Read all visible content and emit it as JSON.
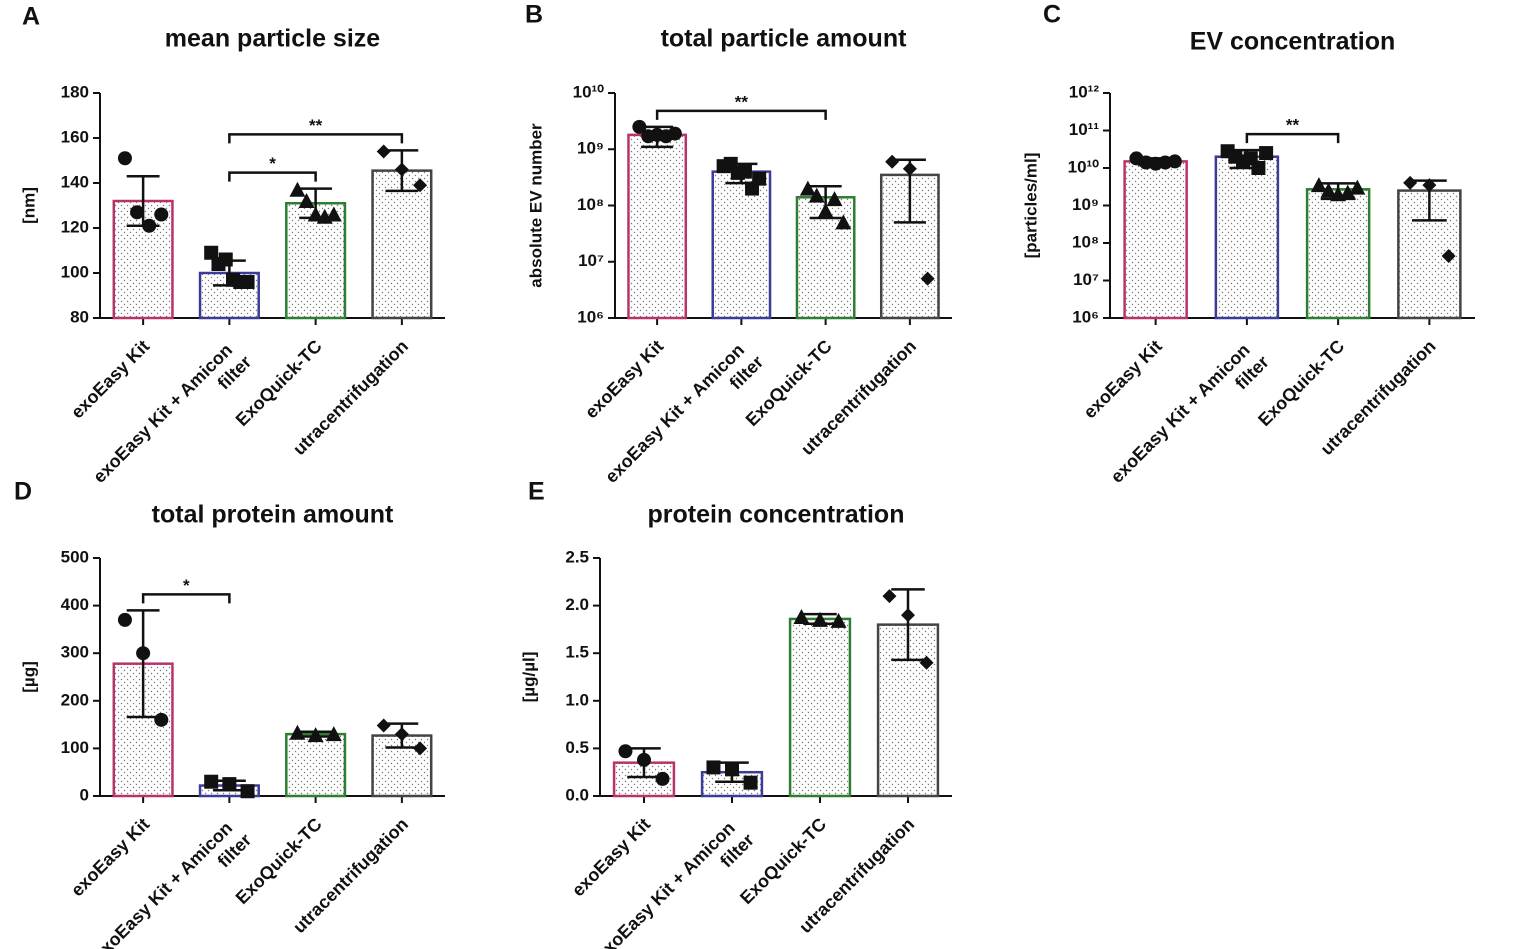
{
  "chart_data": [
    {
      "type": "bar",
      "panel": "A",
      "title": "mean particle size",
      "ylabel": "[nm]",
      "categories": [
        "exoEasy Kit",
        "exoEasy Kit + Amicon filter",
        "ExoQuick-TC",
        "utracentrifugation"
      ],
      "colors": [
        "#b8336a",
        "#3b3b98",
        "#2e7d32",
        "#444444"
      ],
      "markers": [
        "circle",
        "square",
        "triangle",
        "diamond"
      ],
      "values": [
        132,
        100,
        131,
        145.5
      ],
      "errors": [
        11,
        5.5,
        6.5,
        9
      ],
      "points": [
        [
          151,
          127,
          121,
          126
        ],
        [
          109,
          104,
          106,
          97,
          96,
          96
        ],
        [
          137,
          132,
          126,
          125,
          126
        ],
        [
          154,
          146,
          139
        ]
      ],
      "ylim": [
        80,
        180
      ],
      "yticks": [
        80,
        100,
        120,
        140,
        160,
        180
      ],
      "log": false,
      "significance": [
        {
          "between": [
            "exoEasy Kit + Amicon filter",
            "ExoQuick-TC"
          ],
          "label": "*"
        },
        {
          "between": [
            "exoEasy Kit + Amicon filter",
            "utracentrifugation"
          ],
          "label": "**"
        }
      ]
    },
    {
      "type": "bar",
      "panel": "B",
      "title": "total particle amount",
      "ylabel": "absolute EV number",
      "categories": [
        "exoEasy Kit",
        "exoEasy Kit + Amicon filter",
        "ExoQuick-TC",
        "utracentrifugation"
      ],
      "colors": [
        "#b8336a",
        "#3b3b98",
        "#2e7d32",
        "#444444"
      ],
      "markers": [
        "circle",
        "square",
        "triangle",
        "diamond"
      ],
      "values": [
        1800000000,
        400000000,
        140000000,
        350000000
      ],
      "errors": [
        700000000,
        150000000,
        80000000,
        300000000
      ],
      "points": [
        [
          2500000000,
          1700000000,
          1800000000,
          1700000000,
          1900000000
        ],
        [
          500000000,
          550000000,
          380000000,
          400000000,
          200000000,
          300000000
        ],
        [
          200000000,
          150000000,
          80000000,
          130000000,
          50000000
        ],
        [
          600000000,
          450000000,
          5000000
        ]
      ],
      "ylim": [
        1000000,
        10000000000
      ],
      "log": true,
      "yticks": [
        {
          "value": 1000000,
          "label": "10⁶"
        },
        {
          "value": 10000000,
          "label": "10⁷"
        },
        {
          "value": 100000000,
          "label": "10⁸"
        },
        {
          "value": 1000000000,
          "label": "10⁹"
        },
        {
          "value": 10000000000,
          "label": "10¹⁰"
        }
      ],
      "significance": [
        {
          "between": [
            "exoEasy Kit",
            "ExoQuick-TC"
          ],
          "label": "**"
        }
      ]
    },
    {
      "type": "bar",
      "panel": "C",
      "title": "EV concentration",
      "ylabel": "[particles/ml]",
      "categories": [
        "exoEasy Kit",
        "exoEasy Kit + Amicon filter",
        "ExoQuick-TC",
        "utracentrifugation"
      ],
      "colors": [
        "#b8336a",
        "#3b3b98",
        "#2e7d32",
        "#444444"
      ],
      "markers": [
        "circle",
        "square",
        "triangle",
        "diamond"
      ],
      "values": [
        15000000000,
        20000000000,
        2700000000,
        2500000000
      ],
      "errors": [
        3000000000,
        10000000000,
        1200000000,
        2100000000
      ],
      "points": [
        [
          18000000000,
          14000000000,
          13000000000,
          14000000000,
          15000000000
        ],
        [
          28000000000,
          20000000000,
          15000000000,
          18000000000,
          10000000000,
          25000000000
        ],
        [
          3500000000,
          2500000000,
          2000000000,
          2200000000,
          3000000000
        ],
        [
          4000000000,
          3500000000,
          45000000
        ]
      ],
      "ylim": [
        1000000,
        1000000000000
      ],
      "log": true,
      "yticks": [
        {
          "value": 1000000,
          "label": "10⁶"
        },
        {
          "value": 10000000,
          "label": "10⁷"
        },
        {
          "value": 100000000,
          "label": "10⁸"
        },
        {
          "value": 1000000000,
          "label": "10⁹"
        },
        {
          "value": 10000000000,
          "label": "10¹⁰"
        },
        {
          "value": 100000000000,
          "label": "10¹¹"
        },
        {
          "value": 1000000000000,
          "label": "10¹²"
        }
      ],
      "significance": [
        {
          "between": [
            "exoEasy Kit + Amicon filter",
            "ExoQuick-TC"
          ],
          "label": "**"
        }
      ]
    },
    {
      "type": "bar",
      "panel": "D",
      "title": "total protein amount",
      "ylabel": "[µg]",
      "categories": [
        "exoEasy Kit",
        "exoEasy Kit + Amicon filter",
        "ExoQuick-TC",
        "utracentrifugation"
      ],
      "colors": [
        "#b8336a",
        "#3b3b98",
        "#2e7d32",
        "#444444"
      ],
      "markers": [
        "circle",
        "square",
        "triangle",
        "diamond"
      ],
      "values": [
        278,
        22,
        130,
        127
      ],
      "errors": [
        112,
        10,
        5,
        25
      ],
      "points": [
        [
          370,
          300,
          160
        ],
        [
          30,
          25,
          10
        ],
        [
          133,
          128,
          130
        ],
        [
          148,
          130,
          100
        ]
      ],
      "ylim": [
        0,
        500
      ],
      "yticks": [
        0,
        100,
        200,
        300,
        400,
        500
      ],
      "log": false,
      "significance": [
        {
          "between": [
            "exoEasy Kit",
            "exoEasy Kit + Amicon filter"
          ],
          "label": "*"
        }
      ]
    },
    {
      "type": "bar",
      "panel": "E",
      "title": "protein concentration",
      "ylabel": "[µg/µl]",
      "categories": [
        "exoEasy Kit",
        "exoEasy Kit + Amicon filter",
        "ExoQuick-TC",
        "utracentrifugation"
      ],
      "colors": [
        "#b8336a",
        "#3b3b98",
        "#2e7d32",
        "#444444"
      ],
      "markers": [
        "circle",
        "square",
        "triangle",
        "diamond"
      ],
      "values": [
        0.35,
        0.25,
        1.86,
        1.8
      ],
      "errors": [
        0.15,
        0.1,
        0.05,
        0.37
      ],
      "points": [
        [
          0.47,
          0.38,
          0.18
        ],
        [
          0.3,
          0.28,
          0.14
        ],
        [
          1.88,
          1.85,
          1.84
        ],
        [
          2.1,
          1.9,
          1.4
        ]
      ],
      "ylim": [
        0,
        2.5
      ],
      "log": false,
      "yticks": [
        {
          "value": 0,
          "label": "0.0"
        },
        0.5,
        {
          "value": 1,
          "label": "1.0"
        },
        1.5,
        {
          "value": 2,
          "label": "2.0"
        },
        2.5
      ],
      "significance": []
    }
  ]
}
